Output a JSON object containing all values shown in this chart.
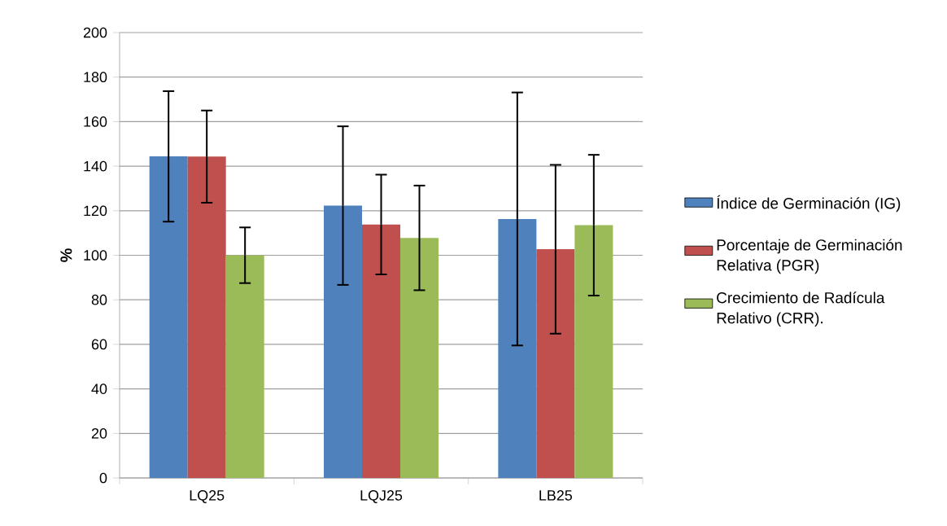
{
  "chart_data": {
    "type": "bar",
    "ylabel": "%",
    "categories": [
      "LQ25",
      "LQJ25",
      "LB25"
    ],
    "series": [
      {
        "name": "Índice de Germinación (IG)",
        "color": "#4f81bd",
        "values": [
          144.4,
          122.3,
          116.3
        ],
        "errors": [
          29.3,
          35.6,
          56.8
        ]
      },
      {
        "name": "Porcentaje de Germinación Relativa (PGR)",
        "color": "#c0504d",
        "values": [
          144.3,
          113.8,
          102.7
        ],
        "errors": [
          20.7,
          22.4,
          37.9
        ]
      },
      {
        "name": "Crecimiento de Radícula Relativo (CRR).",
        "color": "#9bbb59",
        "values": [
          100.0,
          107.8,
          113.5
        ],
        "errors": [
          12.5,
          23.5,
          31.6
        ]
      }
    ],
    "ylim": [
      0,
      200
    ],
    "yticks": [
      0,
      20,
      40,
      60,
      80,
      100,
      120,
      140,
      160,
      180,
      200
    ],
    "grid": "y",
    "legend": "right"
  }
}
